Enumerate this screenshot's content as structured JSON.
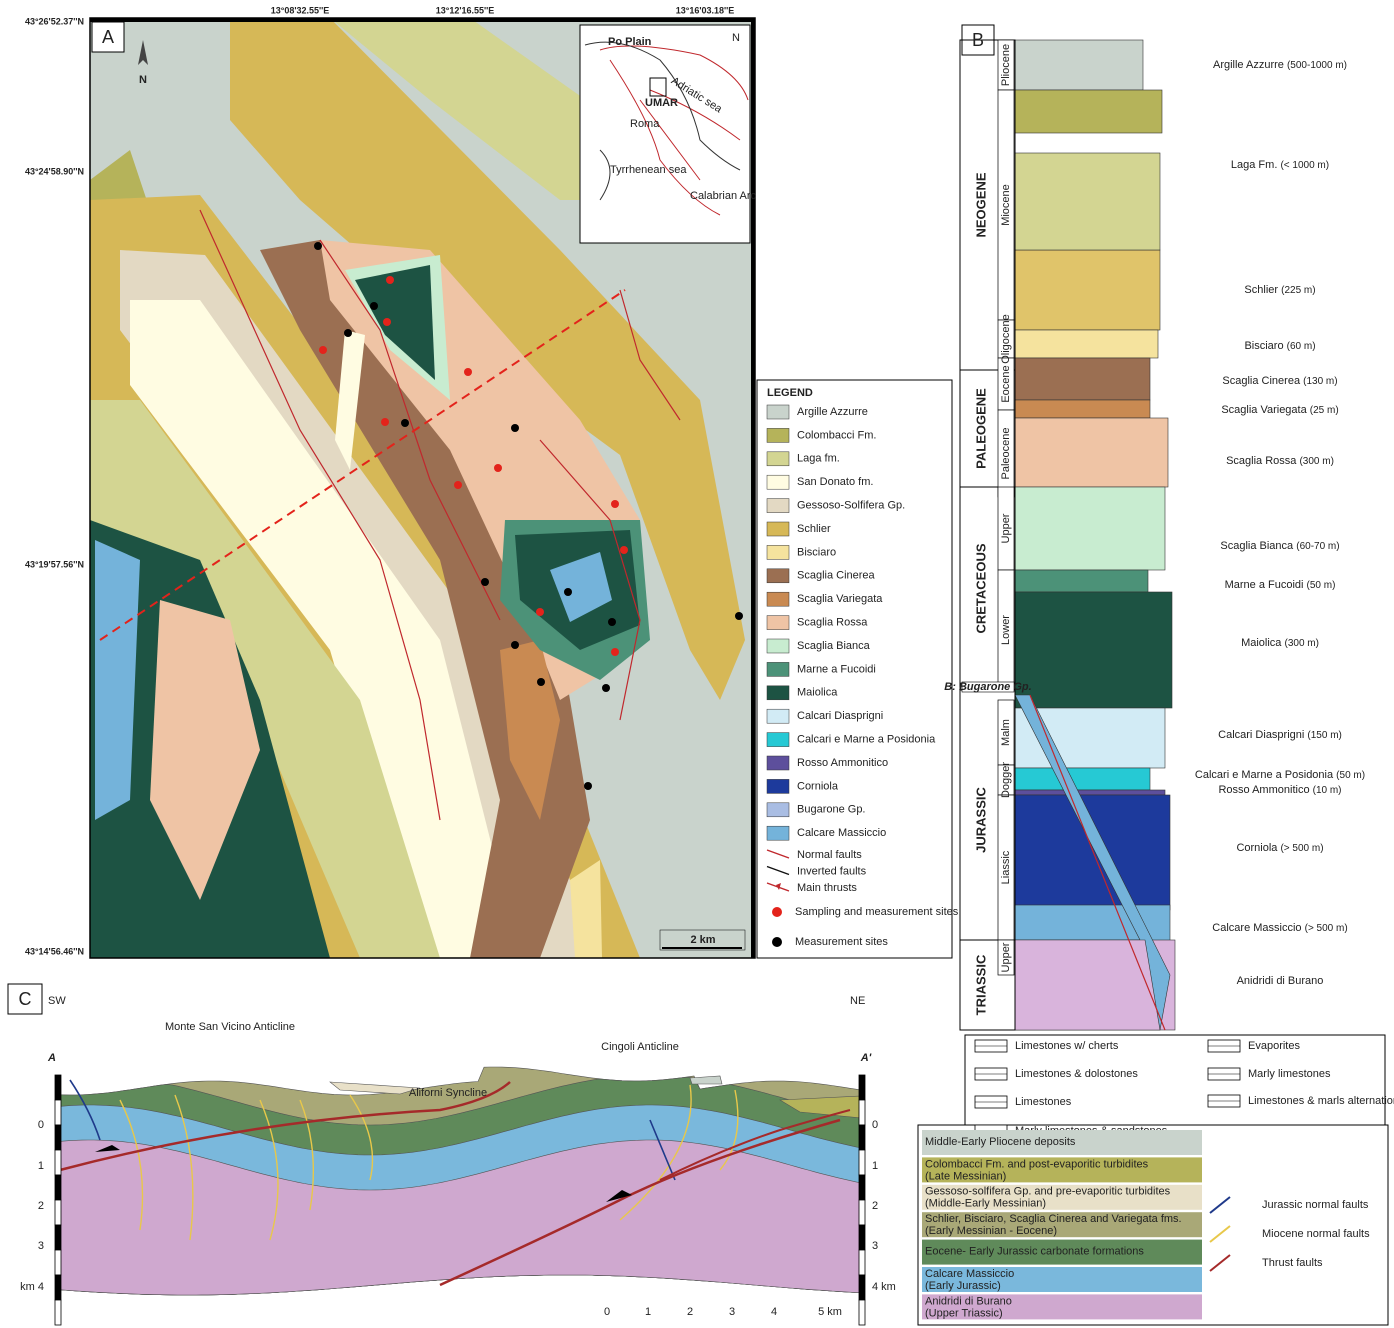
{
  "panel_a": {
    "label": "A",
    "lon_labels": [
      "13°08'32.55''E",
      "13°12'16.55''E",
      "13°16'03.18''E"
    ],
    "lat_labels": [
      "43°26'52.37''N",
      "43°24'58.90''N",
      "43°19'57.56''N",
      "43°14'56.46''N"
    ],
    "north": "N",
    "scale": "2 km",
    "inset": {
      "north": "N",
      "labels": [
        "Po Plain",
        "Adriatic sea",
        "UMAR",
        "Roma",
        "Tyrrhenean sea",
        "Calabrian Arc"
      ]
    },
    "legend": {
      "title": "LEGEND",
      "units": [
        {
          "name": "Argille Azzurre",
          "color": "#c9d3cc"
        },
        {
          "name": "Colombacci Fm.",
          "color": "#b5b35a"
        },
        {
          "name": "Laga fm.",
          "color": "#d3d592"
        },
        {
          "name": "San Donato fm.",
          "color": "#fffce2"
        },
        {
          "name": "Gessoso-Solfifera Gp.",
          "color": "#e3d9c3"
        },
        {
          "name": "Schlier",
          "color": "#d6b857"
        },
        {
          "name": "Bisciaro",
          "color": "#f5e39e"
        },
        {
          "name": "Scaglia Cinerea",
          "color": "#9b6f52"
        },
        {
          "name": "Scaglia Variegata",
          "color": "#c98a52"
        },
        {
          "name": "Scaglia Rossa",
          "color": "#efc4a5"
        },
        {
          "name": "Scaglia Bianca",
          "color": "#c8ecd0"
        },
        {
          "name": "Marne a Fucoidi",
          "color": "#4c9278"
        },
        {
          "name": "Maiolica",
          "color": "#1d5343"
        },
        {
          "name": "Calcari Diasprigni",
          "color": "#d2ebf5"
        },
        {
          "name": "Calcari e Marne a Posidonia",
          "color": "#26c9d4"
        },
        {
          "name": "Rosso Ammonitico",
          "color": "#5d4f9c"
        },
        {
          "name": "Corniola",
          "color": "#1d3a9c"
        },
        {
          "name": "Bugarone Gp.",
          "color": "#a9bde3"
        },
        {
          "name": "Calcare Massiccio",
          "color": "#74b3da"
        }
      ],
      "lines": [
        {
          "name": "Normal faults",
          "color": "#c0282d"
        },
        {
          "name": "Inverted faults",
          "color": "#111111"
        },
        {
          "name": "Main thrusts",
          "color": "#c0282d"
        }
      ],
      "sites": [
        {
          "name": "Sampling and measurement sites",
          "color": "#e3231b"
        },
        {
          "name": "Measurement sites",
          "color": "#000000"
        }
      ]
    }
  },
  "panel_b": {
    "label": "B",
    "periods": [
      "NEOGENE",
      "PALEOGENE",
      "CRETACEOUS",
      "JURASSIC",
      "TRIASSIC"
    ],
    "epochs": [
      "Pliocene",
      "Miocene",
      "Oligocene",
      "Eocene",
      "Paleocene",
      "Upper",
      "Lower",
      "Malm",
      "Dogger",
      "Liassic",
      "Upper"
    ],
    "group_note": "B: Bugarone Gp.",
    "formations": [
      {
        "name": "Argille Azzurre",
        "thickness": "(500-1000 m)",
        "color": "#c9d3cc"
      },
      {
        "name": "Laga Fm.",
        "thickness": "(< 1000 m)",
        "color": "#d3d592"
      },
      {
        "name": "Schlier",
        "thickness": "(225 m)",
        "color": "#e0c46a"
      },
      {
        "name": "Bisciaro",
        "thickness": "(60 m)",
        "color": "#f5e39e"
      },
      {
        "name": "Scaglia Cinerea",
        "thickness": "(130 m)",
        "color": "#9b6f52"
      },
      {
        "name": "Scaglia Variegata",
        "thickness": "(25 m)",
        "color": "#c98a52"
      },
      {
        "name": "Scaglia Rossa",
        "thickness": "(300 m)",
        "color": "#efc4a5"
      },
      {
        "name": "Scaglia Bianca",
        "thickness": "(60-70 m)",
        "color": "#c8ecd0"
      },
      {
        "name": "Marne a Fucoidi",
        "thickness": "(50 m)",
        "color": "#4c9278"
      },
      {
        "name": "Maiolica",
        "thickness": "(300 m)",
        "color": "#1d5343"
      },
      {
        "name": "Calcari Diasprigni",
        "thickness": "(150 m)",
        "color": "#d2ebf5"
      },
      {
        "name": "Calcari e Marne a Posidonia",
        "thickness": "(50 m)",
        "color": "#26c9d4"
      },
      {
        "name": "Rosso Ammonitico",
        "thickness": "(10 m)",
        "color": "#5d4f9c"
      },
      {
        "name": "Corniola",
        "thickness": "(> 500 m)",
        "color": "#1d3a9c"
      },
      {
        "name": "Calcare Massiccio",
        "thickness": "(> 500 m)",
        "color": "#74b3da"
      },
      {
        "name": "Anidridi di Burano",
        "color": "#d9b4dc"
      }
    ],
    "lithology_key": [
      "Limestones w/ cherts",
      "Limestones & dolostones",
      "Limestones",
      "Marly limestones & sandstones",
      "Evaporites",
      "Marly limestones",
      "Limestones & marls alternation w/ turbidites"
    ]
  },
  "panel_c": {
    "label": "C",
    "sw": "SW",
    "ne": "NE",
    "section_ends": [
      "A",
      "A'"
    ],
    "structures": [
      "Monte San Vicino Anticline",
      "Aliforni Syncline",
      "Cingoli Anticline"
    ],
    "depth_left": [
      "0",
      "1",
      "2",
      "3",
      "km 4"
    ],
    "depth_right": [
      "0",
      "1",
      "2",
      "3",
      "4 km"
    ],
    "scale": [
      "0",
      "1",
      "2",
      "3",
      "4",
      "5 km"
    ],
    "legend": {
      "units": [
        {
          "name": "Middle-Early Pliocene deposits",
          "color": "#c9d3cc"
        },
        {
          "name": "Colombacci Fm. and post-evaporitic turbidites",
          "note": "(Late Messinian)",
          "color": "#b5b35a"
        },
        {
          "name": "Gessoso-solfifera Gp. and pre-evaporitic turbidites",
          "note": "(Middle-Early Messinian)",
          "color": "#e8e0c8"
        },
        {
          "name": "Schlier, Bisciaro, Scaglia Cinerea and Variegata fms.",
          "note": "(Early Messinian - Eocene)",
          "color": "#a9a877"
        },
        {
          "name": "Eocene- Early Jurassic carbonate formations",
          "color": "#5f8a5a"
        },
        {
          "name": "Calcare Massiccio",
          "note": "(Early Jurassic)",
          "color": "#7ab8dc"
        },
        {
          "name": "Anidridi di Burano",
          "note": "(Upper Triassic)",
          "color": "#cfa8cf"
        }
      ],
      "faults": [
        {
          "name": "Jurassic normal faults",
          "color": "#1f3a8a"
        },
        {
          "name": "Miocene normal faults",
          "color": "#e8c84a"
        },
        {
          "name": "Thrust faults",
          "color": "#a52a2a"
        }
      ]
    }
  }
}
